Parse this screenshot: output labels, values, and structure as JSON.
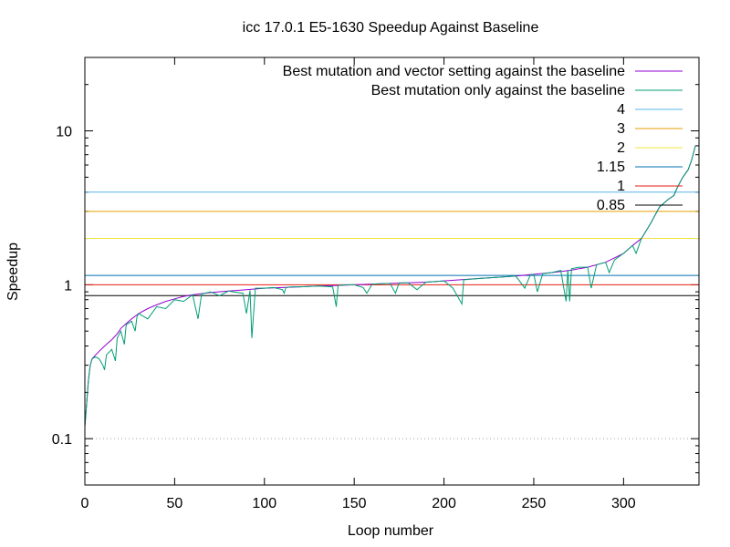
{
  "chart_data": {
    "type": "line",
    "title": "icc 17.0.1 E5-1630 Speedup Against Baseline",
    "xlabel": "Loop number",
    "ylabel": "Speedup",
    "xlim": [
      0,
      342
    ],
    "ylim": [
      0.05,
      30
    ],
    "yscale": "log",
    "x_ticks": [
      0,
      50,
      100,
      150,
      200,
      250,
      300
    ],
    "y_ticks": [
      {
        "value": 0.1,
        "label": "0.1"
      },
      {
        "value": 1,
        "label": "1"
      },
      {
        "value": 10,
        "label": "10"
      }
    ],
    "grid": "dotted line at y = 0.1 only",
    "legend_position": "top-right",
    "series": [
      {
        "name": "Best mutation and vector setting against the baseline",
        "color": "#9400d3",
        "x": [
          0,
          1,
          2,
          3,
          4,
          6,
          8,
          10,
          12,
          15,
          18,
          20,
          23,
          26,
          30,
          35,
          40,
          45,
          50,
          55,
          60,
          70,
          80,
          90,
          100,
          110,
          120,
          130,
          140,
          150,
          160,
          170,
          180,
          190,
          200,
          210,
          220,
          230,
          240,
          250,
          260,
          270,
          280,
          290,
          300,
          305,
          310,
          315,
          320,
          325,
          328,
          330,
          333,
          336,
          338,
          340
        ],
        "y": [
          0.12,
          0.17,
          0.24,
          0.3,
          0.33,
          0.35,
          0.37,
          0.39,
          0.41,
          0.44,
          0.48,
          0.52,
          0.56,
          0.6,
          0.65,
          0.7,
          0.74,
          0.78,
          0.81,
          0.84,
          0.86,
          0.89,
          0.91,
          0.93,
          0.95,
          0.96,
          0.97,
          0.98,
          0.99,
          1.0,
          1.01,
          1.02,
          1.03,
          1.04,
          1.06,
          1.08,
          1.1,
          1.12,
          1.14,
          1.17,
          1.2,
          1.24,
          1.3,
          1.4,
          1.6,
          1.8,
          2.0,
          2.5,
          3.2,
          3.6,
          3.8,
          4.3,
          5.0,
          5.6,
          6.5,
          8.0
        ]
      },
      {
        "name": "Best mutation only against the baseline",
        "color": "#009e73",
        "x": [
          0,
          1,
          2,
          3,
          4,
          6,
          8,
          10,
          11,
          12,
          15,
          17,
          18,
          20,
          22,
          23,
          26,
          28,
          29,
          30,
          35,
          40,
          45,
          50,
          55,
          60,
          63,
          65,
          70,
          75,
          80,
          88,
          90,
          92,
          93,
          95,
          100,
          105,
          110,
          111,
          112,
          115,
          120,
          130,
          138,
          140,
          141,
          145,
          150,
          155,
          157,
          160,
          170,
          173,
          175,
          180,
          185,
          190,
          200,
          205,
          210,
          211,
          212,
          220,
          230,
          240,
          245,
          248,
          250,
          252,
          255,
          260,
          265,
          268,
          269,
          270,
          271,
          275,
          280,
          282,
          285,
          290,
          292,
          295,
          300,
          305,
          307,
          310,
          315,
          320,
          325,
          328,
          330,
          333,
          336,
          338,
          340
        ],
        "y": [
          0.12,
          0.17,
          0.24,
          0.3,
          0.33,
          0.34,
          0.33,
          0.3,
          0.28,
          0.35,
          0.38,
          0.32,
          0.45,
          0.5,
          0.41,
          0.55,
          0.58,
          0.5,
          0.62,
          0.65,
          0.6,
          0.72,
          0.7,
          0.8,
          0.78,
          0.86,
          0.6,
          0.87,
          0.9,
          0.85,
          0.91,
          0.88,
          0.65,
          0.92,
          0.45,
          0.95,
          0.95,
          0.96,
          0.93,
          0.88,
          0.96,
          0.97,
          0.97,
          0.98,
          0.97,
          0.72,
          0.99,
          1.0,
          1.0,
          0.96,
          0.88,
          1.01,
          1.02,
          0.88,
          1.03,
          1.03,
          0.93,
          1.04,
          1.06,
          0.95,
          0.75,
          1.08,
          1.08,
          1.1,
          1.12,
          1.14,
          0.95,
          1.15,
          1.17,
          0.9,
          1.18,
          1.2,
          1.24,
          0.78,
          1.25,
          0.78,
          1.27,
          1.3,
          1.3,
          0.95,
          1.35,
          1.4,
          1.2,
          1.45,
          1.6,
          1.8,
          1.6,
          2.0,
          2.5,
          3.2,
          3.6,
          3.8,
          4.3,
          5.0,
          5.6,
          6.5,
          8.0
        ]
      },
      {
        "name": "4",
        "color": "#56b4e9",
        "value": 4
      },
      {
        "name": "3",
        "color": "#e69f00",
        "value": 3
      },
      {
        "name": "2",
        "color": "#f0e442",
        "value": 2
      },
      {
        "name": "1.15",
        "color": "#0072b2",
        "value": 1.15
      },
      {
        "name": "1",
        "color": "#e51e10",
        "value": 1
      },
      {
        "name": "0.85",
        "color": "#000000",
        "value": 0.85
      }
    ]
  }
}
